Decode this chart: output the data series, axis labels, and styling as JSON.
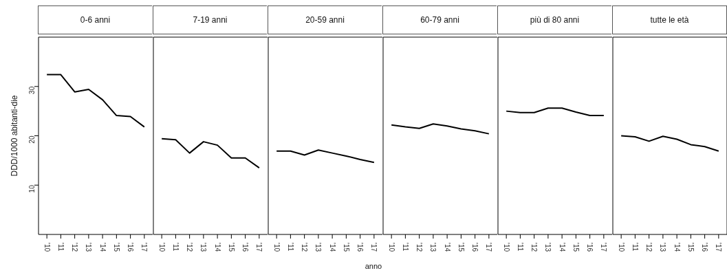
{
  "chart_data": [
    {
      "type": "line",
      "title": "0-6 anni",
      "ylabel": "DDD/1000 abitanti-die",
      "categories": [
        "'10",
        "'11",
        "'12",
        "'13",
        "'14",
        "'15",
        "'16",
        "'17"
      ],
      "values": [
        32.4,
        32.4,
        28.9,
        29.4,
        27.3,
        24.1,
        23.9,
        21.8
      ],
      "color": "#000000",
      "ylim": [
        0,
        40
      ],
      "yticks": [
        10,
        20,
        30
      ],
      "grid": false,
      "legend": false
    },
    {
      "type": "line",
      "title": "7-19 anni",
      "categories": [
        "'10",
        "'11",
        "'12",
        "'13",
        "'14",
        "'15",
        "'16",
        "'17"
      ],
      "values": [
        19.4,
        19.2,
        16.5,
        18.8,
        18.1,
        15.5,
        15.5,
        13.5
      ],
      "color": "#000000",
      "ylim": [
        0,
        40
      ],
      "yticks": [
        10,
        20,
        30
      ],
      "tick_labels": "x",
      "grid": false,
      "legend": false
    },
    {
      "type": "line",
      "title": "20-59 anni",
      "xlabel": "anno",
      "categories": [
        "'10",
        "'11",
        "'12",
        "'13",
        "'14",
        "'15",
        "'16",
        "'17"
      ],
      "values": [
        16.9,
        16.9,
        16.1,
        17.1,
        16.5,
        15.9,
        15.2,
        14.6
      ],
      "color": "#000000",
      "ylim": [
        0,
        40
      ],
      "yticks": [
        10,
        20,
        30
      ],
      "tick_labels": "x",
      "grid": false,
      "legend": false
    },
    {
      "type": "line",
      "title": "60-79 anni",
      "categories": [
        "'10",
        "'11",
        "'12",
        "'13",
        "'14",
        "'15",
        "'16",
        "'17"
      ],
      "values": [
        22.2,
        21.8,
        21.5,
        22.4,
        22.0,
        21.4,
        21.0,
        20.4
      ],
      "color": "#000000",
      "ylim": [
        0,
        40
      ],
      "yticks": [
        10,
        20,
        30
      ],
      "tick_labels": "x",
      "grid": false,
      "legend": false
    },
    {
      "type": "line",
      "title": "più di 80 anni",
      "categories": [
        "'10",
        "'11",
        "'12",
        "'13",
        "'14",
        "'15",
        "'16",
        "'17"
      ],
      "values": [
        25.0,
        24.7,
        24.7,
        25.6,
        25.6,
        24.8,
        24.1,
        24.1
      ],
      "color": "#000000",
      "ylim": [
        0,
        40
      ],
      "yticks": [
        10,
        20,
        30
      ],
      "tick_labels": "x",
      "grid": false,
      "legend": false
    },
    {
      "type": "line",
      "title": "tutte le età",
      "categories": [
        "'10",
        "'11",
        "'12",
        "'13",
        "'14",
        "'15",
        "'16",
        "'17"
      ],
      "values": [
        20.0,
        19.8,
        18.9,
        19.9,
        19.3,
        18.2,
        17.8,
        16.9
      ],
      "color": "#000000",
      "ylim": [
        0,
        40
      ],
      "yticks": [
        10,
        20,
        30
      ],
      "tick_labels": "x",
      "grid": false,
      "legend": false
    }
  ]
}
